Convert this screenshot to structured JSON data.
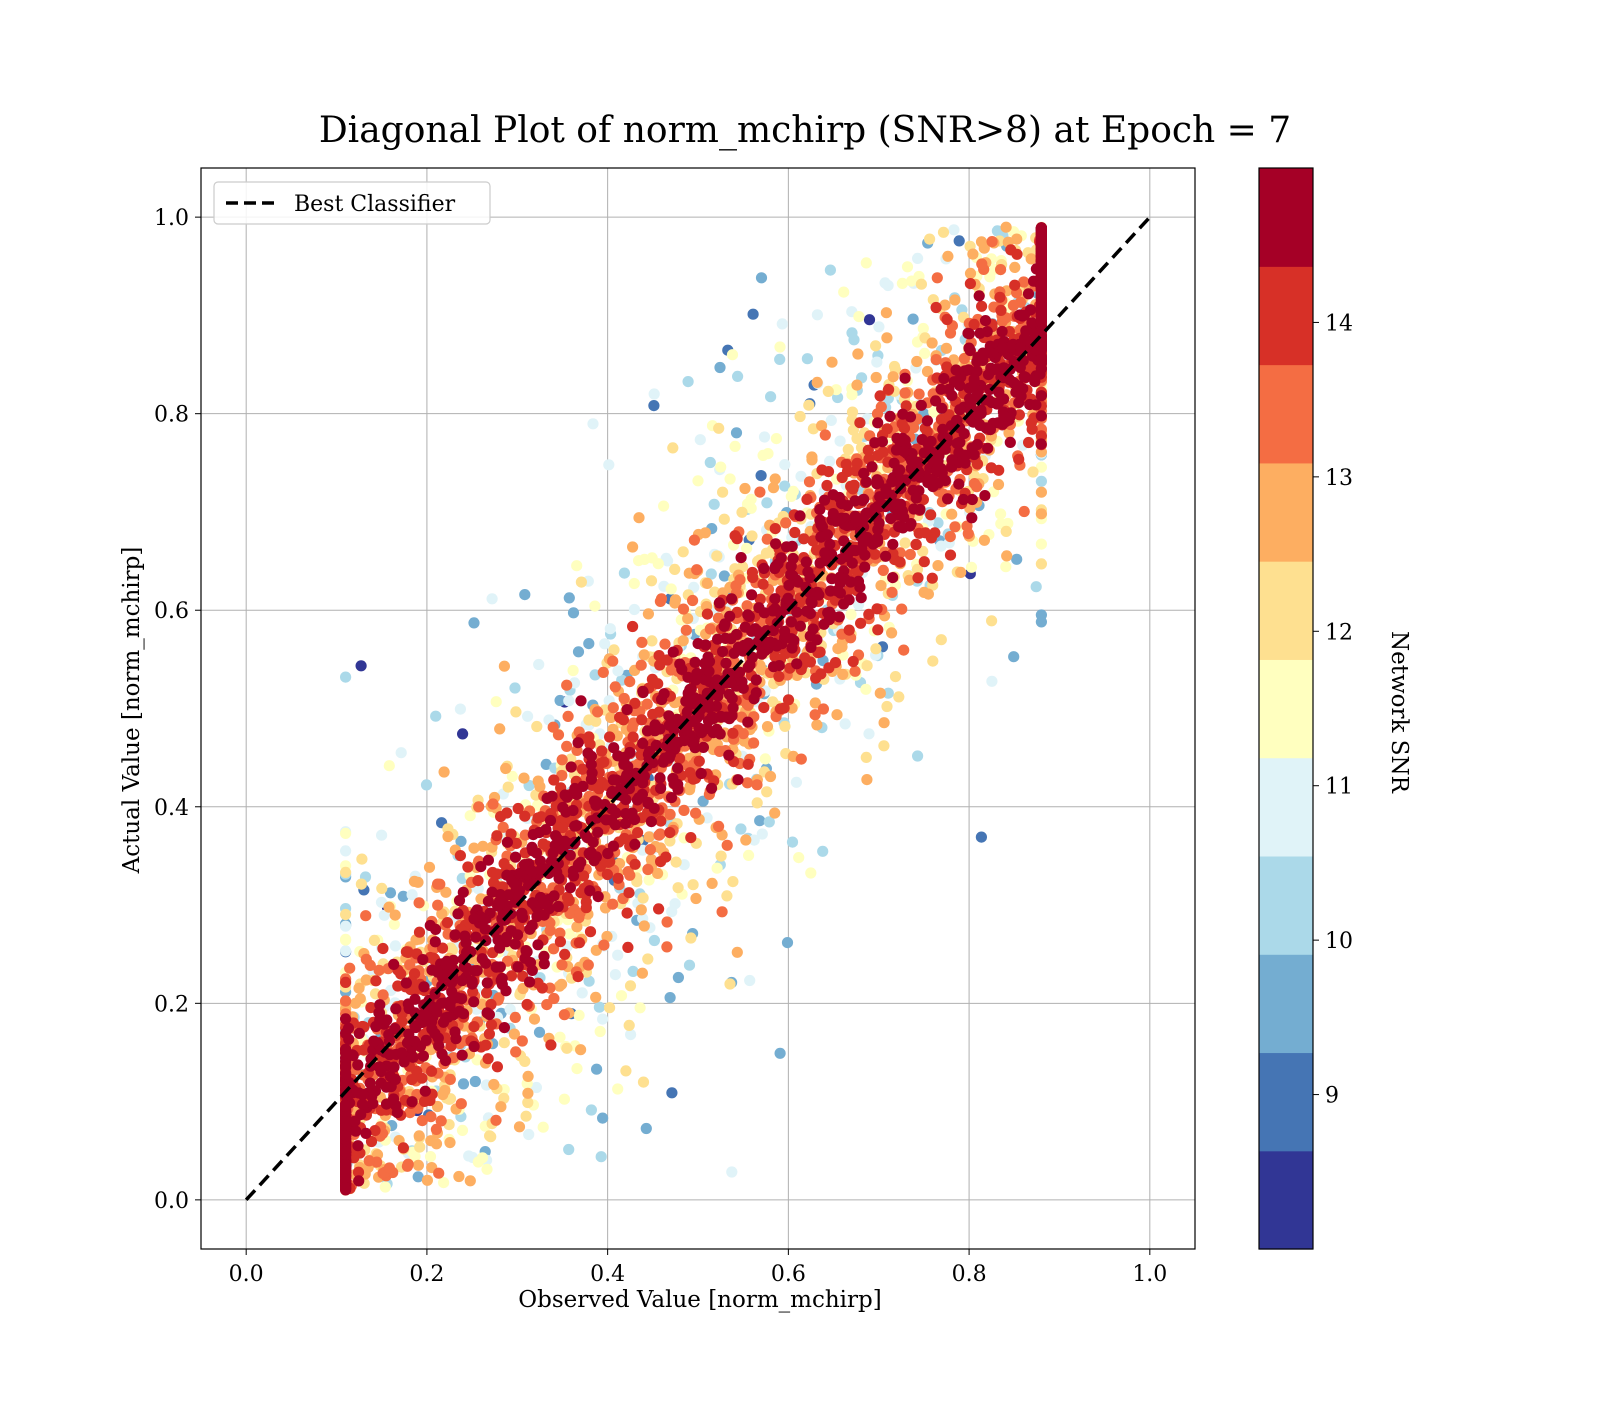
{
  "chart_data": {
    "type": "scatter",
    "title": "Diagonal Plot of norm_mchirp (SNR>8) at Epoch = 7",
    "xlabel": "Observed Value [norm_mchirp]",
    "ylabel": "Actual Value [norm_mchirp]",
    "xlim": [
      -0.05,
      1.05
    ],
    "ylim": [
      -0.05,
      1.05
    ],
    "xticks": [
      "0.0",
      "0.2",
      "0.4",
      "0.6",
      "0.8",
      "1.0"
    ],
    "yticks": [
      "0.0",
      "0.2",
      "0.4",
      "0.6",
      "0.8",
      "1.0"
    ],
    "grid": true,
    "legend": {
      "placement": "top-left",
      "entries": [
        {
          "label": "Best Classifier",
          "style": "dashed",
          "color": "#000000"
        }
      ]
    },
    "reference_line": {
      "name": "Best Classifier",
      "x": [
        0.0,
        1.0
      ],
      "y": [
        0.0,
        1.0
      ]
    },
    "colorbar": {
      "label": "Network SNR",
      "range": [
        8,
        15
      ],
      "ticks": [
        "9",
        "10",
        "11",
        "12",
        "13",
        "14"
      ],
      "colors": [
        "#313695",
        "#4575b4",
        "#74add1",
        "#abd9e9",
        "#e0f3f8",
        "#ffffbf",
        "#fee090",
        "#fdae61",
        "#f46d43",
        "#d73027",
        "#a50026"
      ]
    },
    "scatter_distribution": {
      "description_points": "points scattered around y = x; high SNR concentrated near diagonal, low SNR spread further away",
      "x_range": [
        0.11,
        0.88
      ],
      "y_range": [
        0.0,
        1.0
      ],
      "snr_range": [
        8,
        15
      ]
    }
  }
}
